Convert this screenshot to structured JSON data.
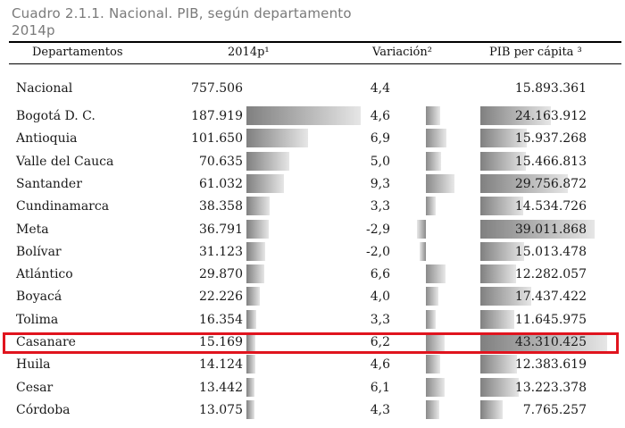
{
  "title": {
    "line1": "Cuadro 2.1.1. Nacional. PIB, según departamento",
    "line2": "2014p"
  },
  "headers": {
    "departamentos": "Departamentos",
    "gdp": "2014p¹",
    "variacion": "Variación²",
    "pib_per_capita": "PIB per cápita ³"
  },
  "national": {
    "name": "Nacional",
    "gdp": "757.506",
    "variacion": "4,4",
    "per_capita": "15.893.361"
  },
  "rows": [
    {
      "name": "Bogotá D. C.",
      "gdp": "187.919",
      "variacion": "4,6",
      "per_capita": "24.163.912",
      "gdp_value": 187919,
      "var_value": 4.6,
      "pc_value": 24163912
    },
    {
      "name": "Antioquia",
      "gdp": "101.650",
      "variacion": "6,9",
      "per_capita": "15.937.268",
      "gdp_value": 101650,
      "var_value": 6.9,
      "pc_value": 15937268
    },
    {
      "name": "Valle del Cauca",
      "gdp": "70.635",
      "variacion": "5,0",
      "per_capita": "15.466.813",
      "gdp_value": 70635,
      "var_value": 5.0,
      "pc_value": 15466813
    },
    {
      "name": "Santander",
      "gdp": "61.032",
      "variacion": "9,3",
      "per_capita": "29.756.872",
      "gdp_value": 61032,
      "var_value": 9.3,
      "pc_value": 29756872
    },
    {
      "name": "Cundinamarca",
      "gdp": "38.358",
      "variacion": "3,3",
      "per_capita": "14.534.726",
      "gdp_value": 38358,
      "var_value": 3.3,
      "pc_value": 14534726
    },
    {
      "name": "Meta",
      "gdp": "36.791",
      "variacion": "-2,9",
      "per_capita": "39.011.868",
      "gdp_value": 36791,
      "var_value": -2.9,
      "pc_value": 39011868
    },
    {
      "name": "Bolívar",
      "gdp": "31.123",
      "variacion": "-2,0",
      "per_capita": "15.013.478",
      "gdp_value": 31123,
      "var_value": -2.0,
      "pc_value": 15013478
    },
    {
      "name": "Atlántico",
      "gdp": "29.870",
      "variacion": "6,6",
      "per_capita": "12.282.057",
      "gdp_value": 29870,
      "var_value": 6.6,
      "pc_value": 12282057
    },
    {
      "name": "Boyacá",
      "gdp": "22.226",
      "variacion": "4,0",
      "per_capita": "17.437.422",
      "gdp_value": 22226,
      "var_value": 4.0,
      "pc_value": 17437422
    },
    {
      "name": "Tolima",
      "gdp": "16.354",
      "variacion": "3,3",
      "per_capita": "11.645.975",
      "gdp_value": 16354,
      "var_value": 3.3,
      "pc_value": 11645975
    },
    {
      "name": "Casanare",
      "gdp": "15.169",
      "variacion": "6,2",
      "per_capita": "43.310.425",
      "gdp_value": 15169,
      "var_value": 6.2,
      "pc_value": 43310425,
      "highlighted": true
    },
    {
      "name": "Huila",
      "gdp": "14.124",
      "variacion": "4,6",
      "per_capita": "12.383.619",
      "gdp_value": 14124,
      "var_value": 4.6,
      "pc_value": 12383619
    },
    {
      "name": "Cesar",
      "gdp": "13.442",
      "variacion": "6,1",
      "per_capita": "13.223.378",
      "gdp_value": 13442,
      "var_value": 6.1,
      "pc_value": 13223378
    },
    {
      "name": "Córdoba",
      "gdp": "13.075",
      "variacion": "4,3",
      "per_capita": "7.765.257",
      "gdp_value": 13075,
      "var_value": 4.3,
      "pc_value": 7765257
    }
  ],
  "colors": {
    "highlight_border": "#e0141e",
    "bar_dark": "#808080",
    "bar_light": "#e6e6e6",
    "title_gray": "#7a7a7a"
  }
}
